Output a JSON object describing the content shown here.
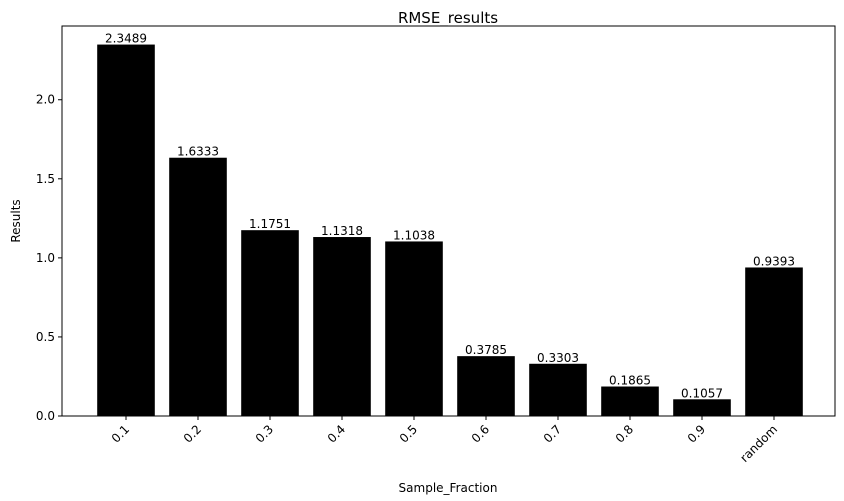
{
  "chart_data": {
    "type": "bar",
    "title": "RMSE_results",
    "xlabel": "Sample_Fraction",
    "ylabel": "Results",
    "categories": [
      "0.1",
      "0.2",
      "0.3",
      "0.4",
      "0.5",
      "0.6",
      "0.7",
      "0.8",
      "0.9",
      "random"
    ],
    "values": [
      2.3489,
      1.6333,
      1.1751,
      1.1318,
      1.1038,
      0.3785,
      0.3303,
      0.1865,
      0.1057,
      0.9393
    ],
    "value_labels": [
      "2.3489",
      "1.6333",
      "1.1751",
      "1.1318",
      "1.1038",
      "0.3785",
      "0.3303",
      "0.1865",
      "0.1057",
      "0.9393"
    ],
    "yticks": [
      0.0,
      0.5,
      1.0,
      1.5,
      2.0
    ],
    "ytick_labels": [
      "0.0",
      "0.5",
      "1.0",
      "1.5",
      "2.0"
    ],
    "ylim": [
      0,
      2.4663
    ],
    "bar_color": "#000000",
    "grid": false,
    "legend": "none",
    "xtick_rotation": "45"
  }
}
